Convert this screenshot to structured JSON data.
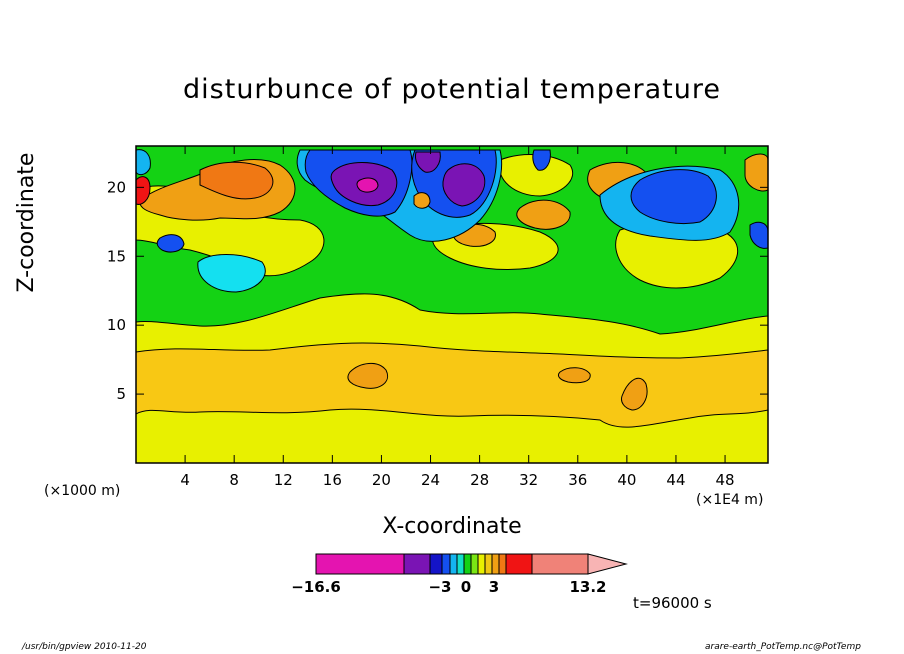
{
  "chart_data": {
    "type": "heatmap",
    "title": "disturbunce of potential temperature",
    "xlabel": "X-coordinate",
    "ylabel": "Z-coordinate",
    "x_multiplier_label": "(×1000 m)",
    "x_unit_label": "(×1E4 m)",
    "xlim": [
      0,
      51.5
    ],
    "ylim": [
      0,
      23
    ],
    "x_ticks": [
      "4",
      "8",
      "12",
      "16",
      "20",
      "24",
      "28",
      "32",
      "36",
      "40",
      "44",
      "48"
    ],
    "y_ticks": [
      "5",
      "10",
      "15",
      "20"
    ],
    "colorbar": {
      "labels": [
        "−16.6",
        "−3",
        "0",
        "3",
        "13.2"
      ],
      "colors": [
        "#e414b0",
        "#7a14b4",
        "#1414c8",
        "#1450f0",
        "#14b4f0",
        "#14e0c8",
        "#14d214",
        "#7ae614",
        "#e8f000",
        "#f0c814",
        "#f0a014",
        "#f07814",
        "#f01414",
        "#f08278",
        "#f8b4b4"
      ]
    },
    "time_label": "t=96000 s"
  },
  "footer": {
    "left": "/usr/bin/gpview   2010-11-20",
    "right": "arare-earth_PotTemp.nc@PotTemp"
  }
}
